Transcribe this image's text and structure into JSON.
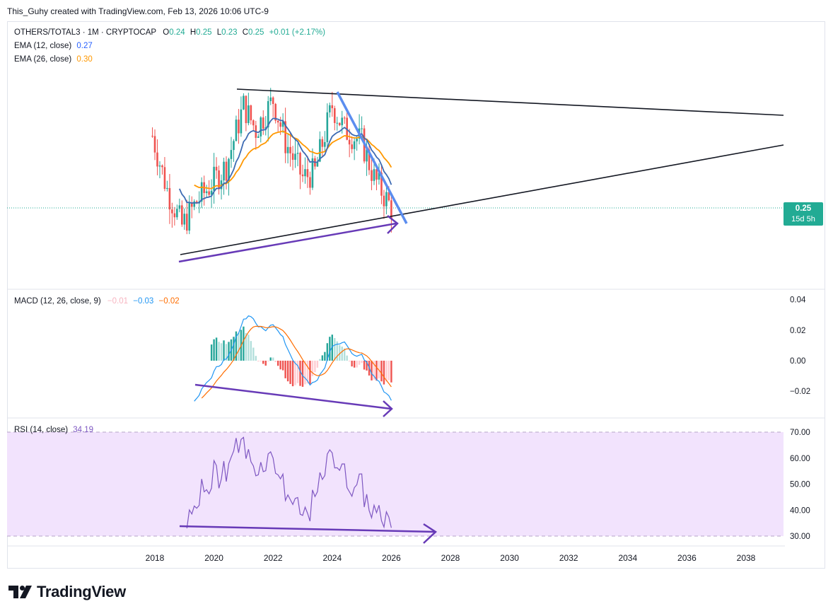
{
  "header": {
    "attribution": "This_Guhy created with TradingView.com, Feb 13, 2026 10:06 UTC-9"
  },
  "price_legend": {
    "symbol": "OTHERS/TOTAL3 · 1M · CRYPTOCAP",
    "o_label": "O",
    "o_value": "0.24",
    "h_label": "H",
    "h_value": "0.25",
    "l_label": "L",
    "l_value": "0.23",
    "c_label": "C",
    "c_value": "0.25",
    "change": "+0.01 (+2.17%)"
  },
  "ema12": {
    "label": "EMA (12, close)",
    "value": "0.27"
  },
  "ema26": {
    "label": "EMA (26, close)",
    "value": "0.30"
  },
  "macd_legend": {
    "label": "MACD (12, 26, close, 9)",
    "hist": "−0.01",
    "macd": "−0.03",
    "signal": "−0.02"
  },
  "rsi_legend": {
    "label": "RSI (14, close)",
    "value": "34.19"
  },
  "price_tag": {
    "price": "0.25",
    "countdown": "15d 5h"
  },
  "logo": {
    "text": "TradingView"
  },
  "colors": {
    "up": "#26a69a",
    "down": "#ef5350",
    "ema12": "#2962ff",
    "ema26": "#ff9800",
    "macd": "#2196f3",
    "signal": "#ff6d00",
    "rsi": "#7e57c2",
    "rsi_band": "#f2e3fd",
    "divergence": "#673ab7",
    "wedge_blue": "#2962ff",
    "trendline": "#131722"
  },
  "chart_data": [
    {
      "type": "candlestick",
      "title": "OTHERS/TOTAL3 · 1M · CRYPTOCAP",
      "x_axis_labels": [
        "2018",
        "2020",
        "2022",
        "2024",
        "2026",
        "2028",
        "2030",
        "2032",
        "2034",
        "2036",
        "2038"
      ],
      "last_price": 0.25,
      "approx_close_path": [
        {
          "x": "2017-12",
          "y": 0.37
        },
        {
          "x": "2018-06",
          "y": 0.28
        },
        {
          "x": "2018-12",
          "y": 0.22
        },
        {
          "x": "2019-06",
          "y": 0.26
        },
        {
          "x": "2020-06",
          "y": 0.32
        },
        {
          "x": "2021-01",
          "y": 0.42
        },
        {
          "x": "2021-06",
          "y": 0.38
        },
        {
          "x": "2022-01",
          "y": 0.43
        },
        {
          "x": "2022-06",
          "y": 0.36
        },
        {
          "x": "2023-01",
          "y": 0.3
        },
        {
          "x": "2023-06",
          "y": 0.31
        },
        {
          "x": "2024-01",
          "y": 0.42
        },
        {
          "x": "2024-06",
          "y": 0.38
        },
        {
          "x": "2025-01",
          "y": 0.36
        },
        {
          "x": "2025-06",
          "y": 0.3
        },
        {
          "x": "2026-01",
          "y": 0.25
        }
      ],
      "series": [
        {
          "name": "EMA (12, close)",
          "last_value": 0.27
        },
        {
          "name": "EMA (26, close)",
          "last_value": 0.3
        }
      ],
      "annotations": [
        "descending resistance trendline",
        "ascending support trendline",
        "steep blue falling trendline",
        "bullish divergence arrow on lows"
      ]
    },
    {
      "type": "line",
      "title": "MACD (12, 26, close, 9)",
      "y_ticks": [
        0.04,
        0.02,
        0.0,
        -0.02
      ],
      "series": [
        {
          "name": "MACD",
          "last_value": -0.03
        },
        {
          "name": "Signal",
          "last_value": -0.02
        },
        {
          "name": "Histogram",
          "last_value": -0.01
        }
      ]
    },
    {
      "type": "line",
      "title": "RSI (14, close)",
      "y_ticks": [
        70.0,
        60.0,
        50.0,
        40.0,
        30.0
      ],
      "band": [
        30,
        70
      ],
      "series": [
        {
          "name": "RSI",
          "last_value": 34.19
        }
      ]
    }
  ]
}
